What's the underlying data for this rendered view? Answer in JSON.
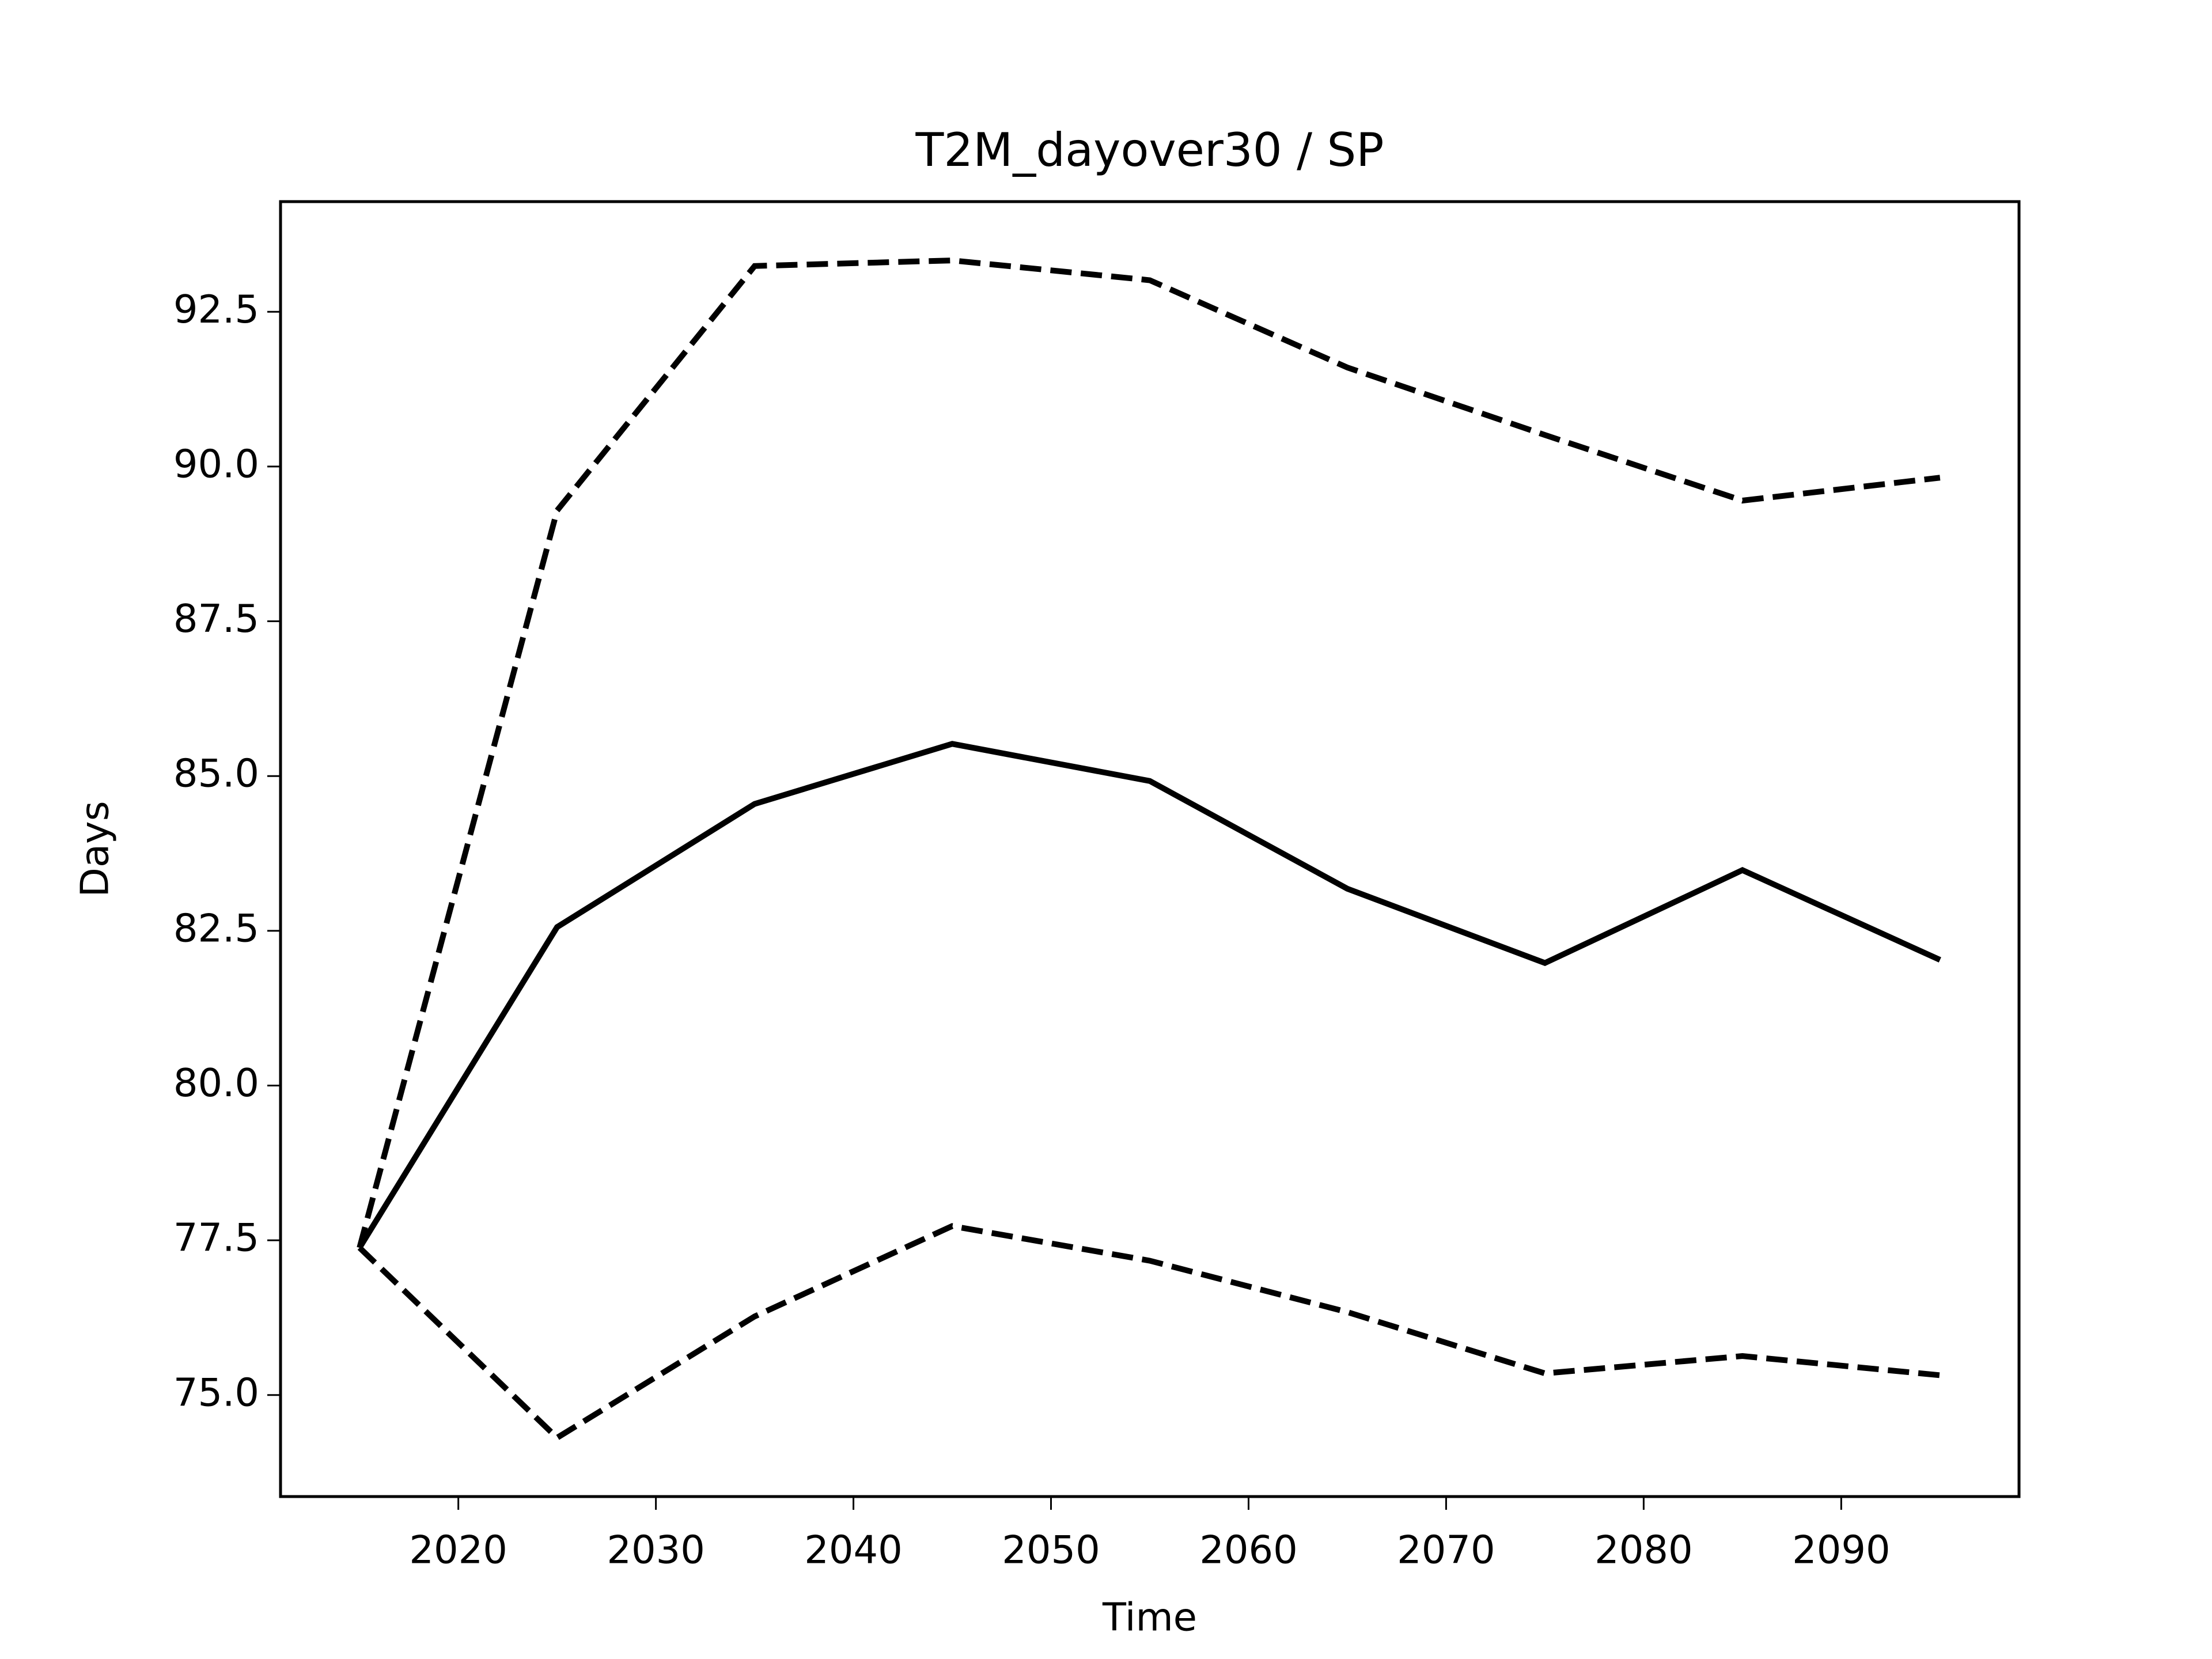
{
  "chart_data": {
    "type": "line",
    "title": "T2M_dayover30 / SP",
    "xlabel": "Time",
    "ylabel": "Days",
    "x": [
      2015,
      2025,
      2035,
      2045,
      2055,
      2065,
      2075,
      2085,
      2095
    ],
    "series": [
      {
        "color": "#000000",
        "linestyle": "solid",
        "values": [
          77.38,
          82.56,
          84.55,
          85.52,
          84.92,
          83.18,
          81.98,
          83.48,
          82.03
        ]
      },
      {
        "color": "#000000",
        "linestyle": "dashed",
        "values": [
          77.38,
          89.29,
          93.24,
          93.33,
          93.01,
          91.6,
          90.51,
          89.45,
          89.82
        ]
      },
      {
        "color": "#000000",
        "linestyle": "dashed",
        "values": [
          77.38,
          74.31,
          76.27,
          77.73,
          77.17,
          76.34,
          75.35,
          75.63,
          75.32
        ]
      }
    ],
    "xlim": [
      2011,
      2099
    ],
    "ylim": [
      73.36,
      94.28
    ],
    "xticks": [
      2020,
      2030,
      2040,
      2050,
      2060,
      2070,
      2080,
      2090
    ],
    "yticks": [
      {
        "value": 75,
        "label": "75.0"
      },
      77.5,
      {
        "value": 80,
        "label": "80.0"
      },
      82.5,
      {
        "value": 85,
        "label": "85.0"
      },
      87.5,
      {
        "value": 90,
        "label": "90.0"
      },
      92.5
    ],
    "grid": false
  }
}
